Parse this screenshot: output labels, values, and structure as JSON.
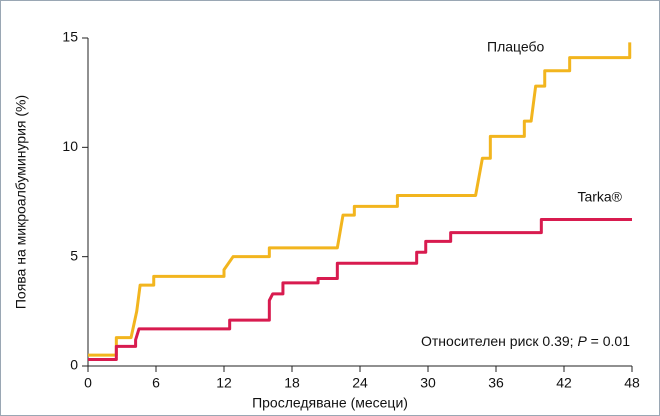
{
  "chart_data": {
    "type": "line",
    "xlabel": "Проследяване (месеци)",
    "ylabel": "Поява на микроалбуминурия (%)",
    "xlim": [
      0,
      48
    ],
    "xticks": [
      0,
      6,
      12,
      18,
      24,
      30,
      36,
      42,
      48
    ],
    "ylim": [
      0,
      15
    ],
    "yticks": [
      0,
      5,
      10,
      15
    ],
    "annotation": [
      "Относителен риск 0.39; ",
      "P",
      " = 0.01"
    ],
    "series": [
      {
        "name": "Плацебо",
        "color": "#f2b51e",
        "x": [
          0,
          2.5,
          2.5,
          3.8,
          4.3,
          4.6,
          5.8,
          5.8,
          12,
          12,
          12.8,
          16,
          16,
          22,
          22.3,
          22.5,
          23.5,
          23.5,
          27.3,
          27.3,
          34.2,
          34.8,
          35.5,
          35.5,
          38.5,
          38.5,
          39.1,
          39.5,
          40.3,
          40.3,
          42.5,
          42.5,
          47.8,
          47.8
        ],
        "values": [
          0.5,
          0.5,
          1.3,
          1.3,
          2.5,
          3.7,
          3.7,
          4.1,
          4.1,
          4.4,
          5.0,
          5.0,
          5.4,
          5.4,
          6.3,
          6.9,
          6.9,
          7.3,
          7.3,
          7.8,
          7.8,
          9.5,
          9.5,
          10.5,
          10.5,
          11.2,
          11.2,
          12.8,
          12.8,
          13.5,
          13.5,
          14.1,
          14.1,
          14.8
        ]
      },
      {
        "name": "Tarka®",
        "color": "#d81b4f",
        "x": [
          0,
          2.5,
          2.5,
          4.2,
          4.2,
          4.5,
          12.5,
          12.5,
          16,
          16,
          16.3,
          17.2,
          17.2,
          20.3,
          20.3,
          22,
          22,
          29,
          29,
          29.8,
          29.8,
          32,
          32,
          40,
          40,
          48
        ],
        "values": [
          0.3,
          0.3,
          0.9,
          0.9,
          1.2,
          1.7,
          1.7,
          2.1,
          2.1,
          3.0,
          3.3,
          3.3,
          3.8,
          3.8,
          4.0,
          4.0,
          4.7,
          4.7,
          5.2,
          5.2,
          5.7,
          5.7,
          6.1,
          6.1,
          6.7,
          6.7
        ]
      }
    ]
  }
}
